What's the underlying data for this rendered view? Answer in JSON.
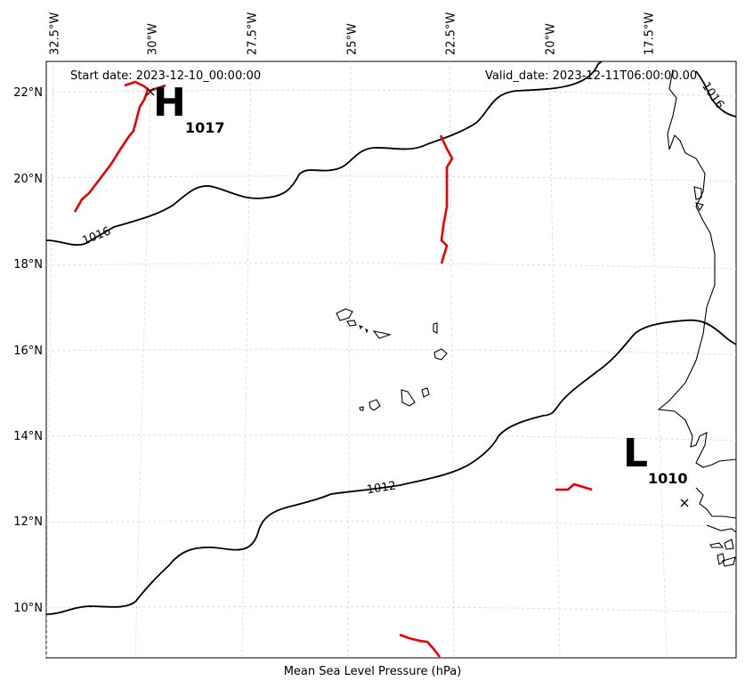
{
  "header": {
    "start_date": "Start date: 2023-12-10_00:00:00",
    "valid_date": "Valid_date: 2023-12-11T06:00:00.00"
  },
  "caption": "Mean Sea Level Pressure (hPa)",
  "axes": {
    "lon_ticks": [
      "32.5°W",
      "30°W",
      "27.5°W",
      "25°W",
      "22.5°W",
      "20°W",
      "17.5°W"
    ],
    "lat_ticks": [
      "22°N",
      "20°N",
      "18°N",
      "16°N",
      "14°N",
      "12°N",
      "10°N"
    ],
    "gridlines": true
  },
  "contours": [
    {
      "level": "1016",
      "label": "1016"
    },
    {
      "level": "1016",
      "label": "1016"
    },
    {
      "level": "1012",
      "label": "1012"
    }
  ],
  "pressure_systems": [
    {
      "type": "H",
      "value": "1017"
    },
    {
      "type": "L",
      "value": "1010"
    }
  ],
  "colors": {
    "isobar": "#000000",
    "front": "#ee0000",
    "grid": "#cccccc",
    "coast": "#000000"
  }
}
